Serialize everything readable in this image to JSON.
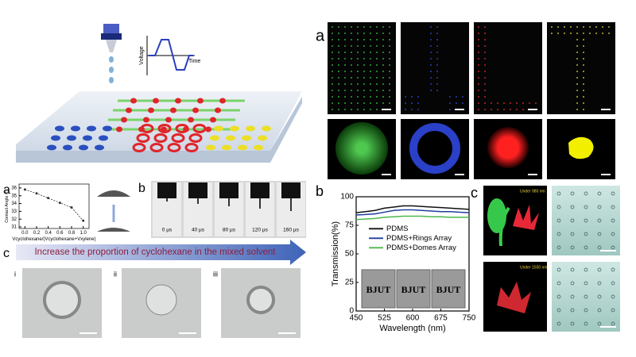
{
  "schematic": {
    "waveform_y_label": "Voltage",
    "waveform_x_label": "Time"
  },
  "panel_labels": [
    "a",
    "a",
    "b",
    "c",
    "b",
    "c"
  ],
  "high_speed_frames": [
    "0 µs",
    "40 µs",
    "80 µs",
    "120 µs",
    "160 µs"
  ],
  "solvent_arrow": "Increase the proportion of cyclohexane in the mixed solvent",
  "morphology_labels": [
    "i",
    "ii",
    "iii"
  ],
  "inset_text": [
    "BJUT",
    "BJUT",
    "BJUT"
  ],
  "upconversion_labels": [
    "Under 980 nm",
    "Under 1550 nm"
  ],
  "chart_data": [
    {
      "type": "line",
      "ylabel": "Contact Angle (°)",
      "xlabel": "Vcyclohexane/(Vcyclohexane+Vxylene)",
      "x": [
        0,
        0.2,
        0.4,
        0.6,
        0.8,
        1.0
      ],
      "values": [
        35.8,
        35.3,
        34.7,
        34.1,
        33.5,
        31.8
      ],
      "color": "#333333",
      "dashed": true,
      "markers": true,
      "xlim": [
        -0.1,
        1.1
      ],
      "ylim": [
        30.8,
        36.5
      ],
      "xticks": [
        {
          "value": 0,
          "label": "0.0"
        },
        0.2,
        0.4,
        0.6,
        0.8,
        {
          "value": 1,
          "label": "1.0"
        }
      ],
      "yticks": [
        31,
        32,
        33,
        34,
        35,
        36
      ]
    },
    {
      "type": "line",
      "xlabel": "Wavelength (nm)",
      "ylabel": "Transmission(%)",
      "x": [
        450,
        475,
        500,
        525,
        550,
        575,
        600,
        625,
        650,
        675,
        700,
        725,
        750
      ],
      "series": [
        {
          "name": "PDMS",
          "color": "#111111",
          "values": [
            86,
            87,
            88,
            90,
            91,
            92,
            92,
            91.5,
            91,
            90.5,
            90,
            89.5,
            89
          ]
        },
        {
          "name": "PDMS+Rings Array",
          "color": "#1f3f9f",
          "values": [
            84,
            84.5,
            85,
            86.5,
            88,
            88.5,
            88.5,
            88,
            87.5,
            87,
            87,
            86.5,
            86
          ]
        },
        {
          "name": "PDMS+Domes Array",
          "color": "#4cb84c",
          "values": [
            80,
            80.5,
            81,
            82,
            82.5,
            83,
            83,
            83,
            82.5,
            82.5,
            82,
            82,
            82
          ]
        }
      ],
      "xlim": [
        450,
        750
      ],
      "ylim": [
        0,
        100
      ],
      "xticks": [
        450,
        525,
        600,
        675,
        750
      ],
      "yticks": [
        0,
        25,
        50,
        75,
        100
      ],
      "legend": "upper center"
    }
  ]
}
